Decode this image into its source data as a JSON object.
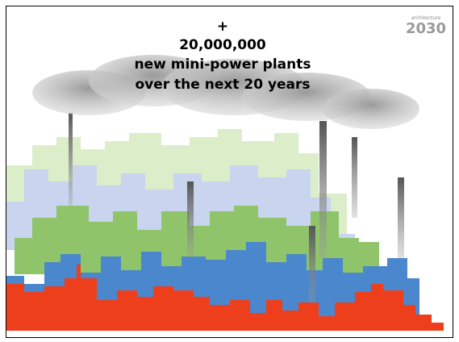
{
  "slide": {
    "lines": [
      "+",
      "20,000,000",
      "new mini-power plants",
      "over the next 20 years"
    ],
    "logo": {
      "small": "architecture",
      "big": "2030"
    }
  }
}
